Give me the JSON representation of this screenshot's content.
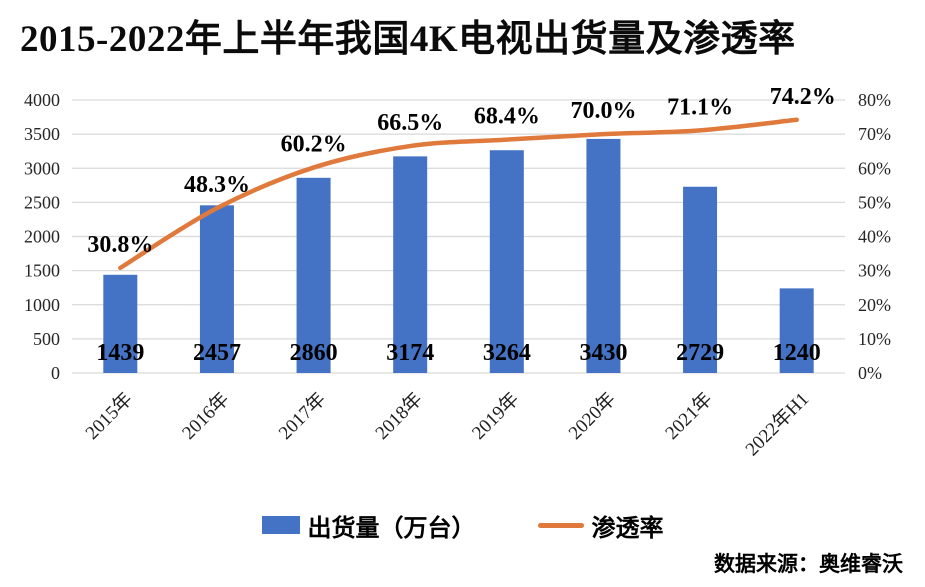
{
  "title": "2015-2022年上半年我国4K电视出货量及渗透率",
  "source": "数据来源：奥维睿沃",
  "legend": {
    "shipments": "出货量（万台）",
    "penetration": "渗透率"
  },
  "colors": {
    "bar": "#4472C4",
    "line": "#E0793C",
    "grid": "#D9D9D9",
    "text": "#000000"
  },
  "chart_data": {
    "type": "bar+line combo",
    "title": "2015-2022年上半年我国4K电视出货量及渗透率",
    "categories": [
      "2015年",
      "2016年",
      "2017年",
      "2018年",
      "2019年",
      "2020年",
      "2021年",
      "2022年H1"
    ],
    "series": [
      {
        "name": "出货量（万台）",
        "type": "bar",
        "axis": "left",
        "values": [
          1439,
          2457,
          2860,
          3174,
          3264,
          3430,
          2729,
          1240
        ]
      },
      {
        "name": "渗透率",
        "type": "line",
        "axis": "right",
        "values": [
          30.8,
          48.3,
          60.2,
          66.5,
          68.4,
          70.0,
          71.1,
          74.2
        ]
      }
    ],
    "bar_labels": [
      "1439",
      "2457",
      "2860",
      "3174",
      "3264",
      "3430",
      "2729",
      "1240"
    ],
    "line_labels": [
      "30.8%",
      "48.3%",
      "60.2%",
      "66.5%",
      "68.4%",
      "70.0%",
      "71.1%",
      "74.2%"
    ],
    "left_axis": {
      "min": 0,
      "max": 4000,
      "step": 500,
      "ticks": [
        "0",
        "500",
        "1000",
        "1500",
        "2000",
        "2500",
        "3000",
        "3500",
        "4000"
      ]
    },
    "right_axis": {
      "min": 0,
      "max": 80,
      "step": 10,
      "ticks": [
        "0%",
        "10%",
        "20%",
        "30%",
        "40%",
        "50%",
        "60%",
        "70%",
        "80%"
      ]
    },
    "grid": true,
    "legend_position": "bottom"
  }
}
